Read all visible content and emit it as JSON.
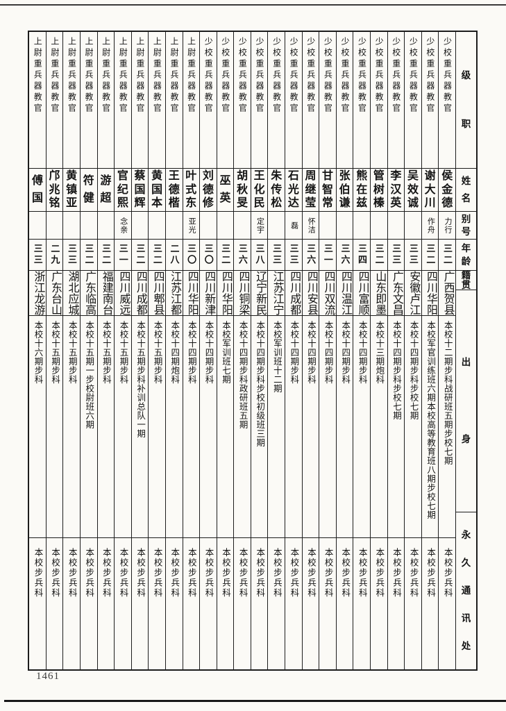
{
  "page": {
    "number": "1461"
  },
  "colors": {
    "line": "#1c1c1c",
    "text": "#141414",
    "background": "#fbfaf6"
  },
  "table": {
    "reading_order": "right-to-left",
    "headers": {
      "rank": "级职",
      "name": "姓名",
      "alias": "别号",
      "age": "年龄",
      "native_place": "籍贯",
      "origin": "出身",
      "address": "永久通讯处"
    },
    "people": [
      {
        "rank": "少校重兵器教官",
        "name": "侯金德",
        "alias": "力行",
        "age": "三二",
        "native_place": "广西贺县",
        "origin": "本校十二期步科战研班五期步校七期",
        "address": "本校步兵科"
      },
      {
        "rank": "少校重兵器教官",
        "name": "谢大川",
        "alias": "作舟",
        "age": "三二",
        "native_place": "四川华阳",
        "origin": "本校军官训练班六期本校高等教育班八期步校七期",
        "address": "本校步兵科"
      },
      {
        "rank": "少校重兵器教官",
        "name": "吴效诚",
        "alias": "",
        "age": "三三",
        "native_place": "安徽卢江",
        "origin": "本校十四期步科步校七期",
        "address": "本校步兵科"
      },
      {
        "rank": "少校重兵器教官",
        "name": "李汉英",
        "alias": "",
        "age": "三三",
        "native_place": "广东文昌",
        "origin": "本校十四期步科步校七期",
        "address": "本校步兵科"
      },
      {
        "rank": "少校重兵器教官",
        "name": "管树榛",
        "alias": "",
        "age": "三二",
        "native_place": "山东即墨",
        "origin": "本校十三期炮科",
        "address": "本校步兵科"
      },
      {
        "rank": "少校重兵器教官",
        "name": "熊在兹",
        "alias": "",
        "age": "三四",
        "native_place": "四川富顺",
        "origin": "本校十四期步科",
        "address": "本校步兵科"
      },
      {
        "rank": "少校重兵器教官",
        "name": "张伯谦",
        "alias": "",
        "age": "三六",
        "native_place": "四川温江",
        "origin": "本校十四期步科",
        "address": "本校步兵科"
      },
      {
        "rank": "少校重兵器教官",
        "name": "甘智常",
        "alias": "",
        "age": "三一",
        "native_place": "四川双流",
        "origin": "本校十四期步科",
        "address": "本校步兵科"
      },
      {
        "rank": "少校重兵器教官",
        "name": "周继莹",
        "alias": "怀洁",
        "age": "三六",
        "native_place": "四川安县",
        "origin": "本校十四期步科",
        "address": "本校步兵科"
      },
      {
        "rank": "少校重兵器教官",
        "name": "石光达",
        "alias": "磊",
        "age": "三三",
        "native_place": "四川成都",
        "origin": "本校十四期步科",
        "address": "本校步兵科"
      },
      {
        "rank": "少校重兵器教官",
        "name": "朱传松",
        "alias": "",
        "age": "三三",
        "native_place": "江苏江宁",
        "origin": "本校军训班十二期",
        "address": "本校步兵科"
      },
      {
        "rank": "少校重兵器教官",
        "name": "王化民",
        "alias": "定宇",
        "age": "三八",
        "native_place": "辽宁新民",
        "origin": "本校十四期步科步校初级班三期",
        "address": "本校步兵科"
      },
      {
        "rank": "少校重兵器教官",
        "name": "胡秋旻",
        "alias": "",
        "age": "三六",
        "native_place": "四川铜梁",
        "origin": "本校十四期步科政研班五期",
        "address": "本校步兵科"
      },
      {
        "rank": "少校重兵器教官",
        "name": "巫英",
        "alias": "",
        "age": "三二",
        "native_place": "四川华阳",
        "origin": "本校军训班七期",
        "address": "本校步兵科"
      },
      {
        "rank": "少校重兵器教官",
        "name": "刘德修",
        "alias": "",
        "age": "三〇",
        "native_place": "四川新津",
        "origin": "本校十四期步科",
        "address": "本校步兵科"
      },
      {
        "rank": "上尉重兵器教官",
        "name": "叶式东",
        "alias": "亚光",
        "age": "三〇",
        "native_place": "四川华阳",
        "origin": "本校十四期步科",
        "address": "本校步兵科"
      },
      {
        "rank": "上尉重兵器教官",
        "name": "王德楷",
        "alias": "",
        "age": "二八",
        "native_place": "江苏江都",
        "origin": "本校十四期炮科",
        "address": "本校步兵科"
      },
      {
        "rank": "上尉重兵器教官",
        "name": "黄国本",
        "alias": "",
        "age": "三二",
        "native_place": "四川郫县",
        "origin": "本校十五期步科",
        "address": "本校步兵科"
      },
      {
        "rank": "上尉重兵器教官",
        "name": "蔡国辉",
        "alias": "",
        "age": "三二",
        "native_place": "四川成都",
        "origin": "本校十五期步科补训总队一期",
        "address": "本校步兵科"
      },
      {
        "rank": "上尉重兵器教官",
        "name": "官纪熙",
        "alias": "念亲",
        "age": "三一",
        "native_place": "四川威远",
        "origin": "本校十五期步科",
        "address": "本校步兵科"
      },
      {
        "rank": "上尉重兵器教官",
        "name": "游超",
        "alias": "",
        "age": "三二",
        "native_place": "福建南台",
        "origin": "本校十五期步科",
        "address": "本校步兵科"
      },
      {
        "rank": "上尉重兵器教官",
        "name": "符健",
        "alias": "",
        "age": "三二",
        "native_place": "广东临高",
        "origin": "本校十五期一步校尉班六期",
        "address": "本校步兵科"
      },
      {
        "rank": "上尉重兵器教官",
        "name": "黄镇亚",
        "alias": "",
        "age": "三三",
        "native_place": "湖北应城",
        "origin": "本校十五期步科",
        "address": "本校步兵科"
      },
      {
        "rank": "上尉重兵器教官",
        "name": "邝兆铭",
        "alias": "",
        "age": "二九",
        "native_place": "广东台山",
        "origin": "本校十五期步科",
        "address": "本校步兵科"
      },
      {
        "rank": "上尉重兵器教官",
        "name": "傅国",
        "alias": "",
        "age": "三三",
        "native_place": "浙江龙游",
        "origin": "本校十六期步科",
        "address": "本校步兵科"
      }
    ]
  }
}
